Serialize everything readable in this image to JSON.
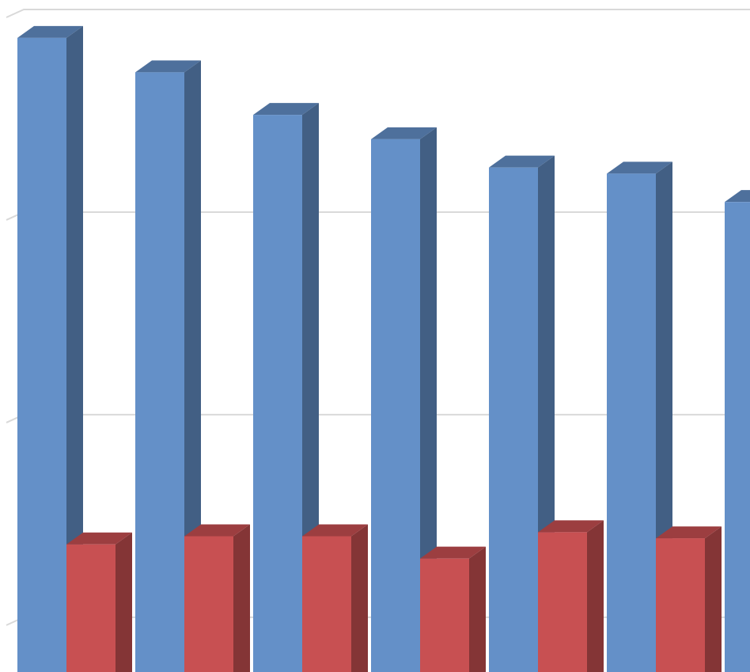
{
  "chart_data": {
    "type": "bar3d",
    "categories": [
      null,
      null,
      null,
      null,
      null,
      null,
      null
    ],
    "series": [
      {
        "color": "#6490c8",
        "values": [
          3.86,
          3.69,
          3.48,
          3.36,
          3.22,
          3.19,
          3.05
        ]
      },
      {
        "color": "#c85052",
        "values": [
          1.36,
          1.4,
          1.4,
          1.29,
          1.42,
          1.39,
          null
        ]
      }
    ],
    "ylim": [
      0.73,
      4.0
    ],
    "yticks": [
      1,
      2,
      3,
      4
    ],
    "grid": true
  }
}
